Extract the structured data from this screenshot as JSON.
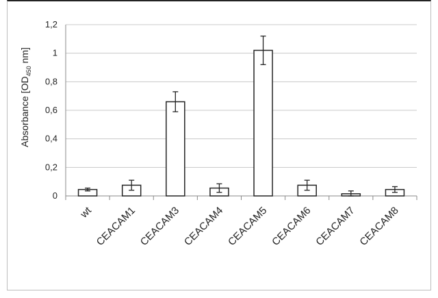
{
  "chart_data": {
    "type": "bar",
    "categories": [
      "wt",
      "CEACAM1",
      "CEACAM3",
      "CEACAM4",
      "CEACAM5",
      "CEACAM6",
      "CEACAM7",
      "CEACAM8"
    ],
    "values": [
      0.045,
      0.075,
      0.66,
      0.055,
      1.02,
      0.075,
      0.015,
      0.045
    ],
    "errors": [
      0.01,
      0.035,
      0.07,
      0.03,
      0.1,
      0.035,
      0.02,
      0.02
    ],
    "title": "",
    "xlabel": "",
    "ylabel": {
      "main": "Absorbance [OD",
      "sub": "450",
      "tail": " nm]"
    },
    "ylim": [
      0,
      1.2
    ],
    "yticks": [
      "0",
      "0,2",
      "0,4",
      "0,6",
      "0,8",
      "1",
      "1,2"
    ],
    "grid": true,
    "legend": "none",
    "colors": {
      "bar_fill": "#ffffff",
      "bar_stroke": "#222222",
      "grid": "#c8c8c8",
      "axis": "#888888"
    }
  }
}
